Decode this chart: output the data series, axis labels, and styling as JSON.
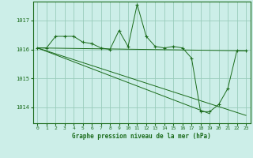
{
  "title": "Graphe pression niveau de la mer (hPa)",
  "background_color": "#cceee8",
  "grid_color": "#99ccbb",
  "line_color": "#1a6b1a",
  "xlim": [
    -0.5,
    23.5
  ],
  "ylim": [
    1013.45,
    1017.65
  ],
  "yticks": [
    1014,
    1015,
    1016,
    1017
  ],
  "xticks": [
    0,
    1,
    2,
    3,
    4,
    5,
    6,
    7,
    8,
    9,
    10,
    11,
    12,
    13,
    14,
    15,
    16,
    17,
    18,
    19,
    20,
    21,
    22,
    23
  ],
  "series1_x": [
    0,
    1,
    2,
    3,
    4,
    5,
    6,
    7,
    8,
    9,
    10,
    11,
    12,
    13,
    14,
    15,
    16,
    17,
    18,
    19,
    20,
    21,
    22,
    23
  ],
  "series1_y": [
    1016.05,
    1016.05,
    1016.45,
    1016.45,
    1016.45,
    1016.25,
    1016.2,
    1016.05,
    1016.0,
    1016.65,
    1016.1,
    1017.55,
    1016.45,
    1016.1,
    1016.05,
    1016.1,
    1016.05,
    1015.7,
    1013.85,
    1013.85,
    1014.1,
    1014.65,
    1015.95,
    1015.95
  ],
  "line2_x": [
    0,
    23
  ],
  "line2_y": [
    1016.05,
    1015.95
  ],
  "line3_x": [
    0,
    19
  ],
  "line3_y": [
    1016.05,
    1013.78
  ],
  "line4_x": [
    0,
    23
  ],
  "line4_y": [
    1016.05,
    1013.72
  ]
}
